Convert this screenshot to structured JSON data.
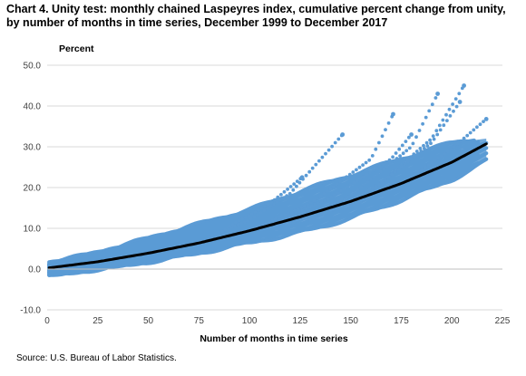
{
  "chart_data": {
    "type": "line",
    "title": "Chart 4. Unity test: monthly chained Laspeyres index, cumulative percent change from unity, by number of months in time series, December 1999 to December 2017",
    "xlabel": "Number of months in time series",
    "ylabel": "Percent",
    "source": "Source: U.S. Bureau of Labor Statistics.",
    "xlim": [
      0,
      225
    ],
    "ylim": [
      -10,
      50
    ],
    "x_ticks": [
      0,
      25,
      50,
      75,
      100,
      125,
      150,
      175,
      200,
      225
    ],
    "y_ticks": [
      -10,
      0,
      10,
      20,
      30,
      40,
      50
    ],
    "y_tick_labels": [
      "-10.0",
      "0.0",
      "10.0",
      "20.0",
      "30.0",
      "40.0",
      "50.0"
    ],
    "grid": "horizontal",
    "legend": "none",
    "colors": {
      "scatter": "#5b9bd5",
      "trend": "#000000",
      "grid": "#d9d9d9"
    },
    "series": [
      {
        "type": "trend",
        "x": [
          1,
          25,
          50,
          75,
          100,
          125,
          150,
          175,
          200,
          217
        ],
        "values": [
          0.3,
          1.8,
          3.9,
          6.4,
          9.4,
          12.8,
          16.6,
          21.0,
          26.2,
          30.7
        ]
      },
      {
        "type": "band-upper",
        "x": [
          1,
          25,
          50,
          75,
          100,
          125,
          150,
          175,
          200,
          217
        ],
        "values": [
          1.5,
          4.0,
          7.5,
          11.0,
          14.5,
          19.0,
          23.0,
          27.0,
          31.0,
          32.0
        ]
      },
      {
        "type": "band-lower",
        "x": [
          1,
          25,
          50,
          75,
          100,
          125,
          150,
          175,
          200,
          217
        ],
        "values": [
          -1.5,
          0.0,
          1.8,
          4.0,
          6.5,
          9.0,
          12.5,
          17.0,
          22.0,
          26.5
        ]
      },
      {
        "type": "outlier",
        "x": [
          80,
          100,
          120,
          146
        ],
        "values": [
          8.0,
          12.0,
          18.5,
          33.0
        ]
      },
      {
        "type": "outlier",
        "x": [
          100,
          130,
          160,
          171
        ],
        "values": [
          9.5,
          16.0,
          27.0,
          38.0
        ]
      },
      {
        "type": "outlier",
        "x": [
          120,
          150,
          180,
          193
        ],
        "values": [
          11.0,
          18.0,
          30.0,
          43.0
        ]
      },
      {
        "type": "outlier",
        "x": [
          130,
          160,
          190,
          206
        ],
        "values": [
          12.0,
          19.0,
          32.0,
          45.0
        ]
      },
      {
        "type": "outlier",
        "x": [
          140,
          165,
          190,
          204
        ],
        "values": [
          14.5,
          21.0,
          31.0,
          41.0
        ]
      },
      {
        "type": "outlier",
        "x": [
          150,
          175,
          200,
          217
        ],
        "values": [
          15.5,
          21.0,
          29.5,
          36.8
        ]
      },
      {
        "type": "outlier",
        "x": [
          110,
          140,
          170,
          180
        ],
        "values": [
          11.0,
          17.5,
          27.0,
          33.0
        ]
      },
      {
        "type": "outlier",
        "x": [
          90,
          110,
          126
        ],
        "values": [
          10.5,
          16.0,
          22.5
        ]
      }
    ]
  }
}
